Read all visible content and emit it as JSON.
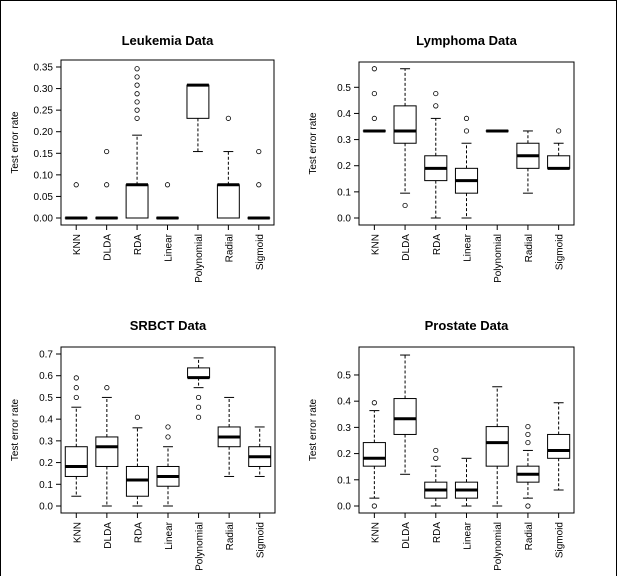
{
  "chart_data": [
    {
      "type": "box",
      "title": "Leukemia Data",
      "ylabel": "Test error rate",
      "ylim": [
        0,
        0.35
      ],
      "yticks": [
        "0.00",
        "0.05",
        "0.10",
        "0.15",
        "0.20",
        "0.25",
        "0.30",
        "0.35"
      ],
      "categories": [
        "KNN",
        "DLDA",
        "RDA",
        "Linear",
        "Polynomial",
        "Radial",
        "Sigmoid"
      ],
      "boxes": [
        {
          "whislo": 0,
          "q1": 0,
          "med": 0,
          "q3": 0,
          "whishi": 0,
          "fliers": [
            0.077
          ]
        },
        {
          "whislo": 0,
          "q1": 0,
          "med": 0,
          "q3": 0,
          "whishi": 0,
          "fliers": [
            0.077,
            0.154
          ]
        },
        {
          "whislo": 0,
          "q1": 0,
          "med": 0.077,
          "q3": 0.077,
          "whishi": 0.192,
          "fliers": [
            0.231,
            0.25,
            0.269,
            0.288,
            0.308,
            0.327,
            0.346
          ]
        },
        {
          "whislo": 0,
          "q1": 0,
          "med": 0,
          "q3": 0,
          "whishi": 0,
          "fliers": [
            0.077
          ]
        },
        {
          "whislo": 0.154,
          "q1": 0.231,
          "med": 0.308,
          "q3": 0.308,
          "whishi": 0.308,
          "fliers": []
        },
        {
          "whislo": 0,
          "q1": 0,
          "med": 0.077,
          "q3": 0.077,
          "whishi": 0.154,
          "fliers": [
            0.231
          ]
        },
        {
          "whislo": 0,
          "q1": 0,
          "med": 0,
          "q3": 0,
          "whishi": 0,
          "fliers": [
            0.077,
            0.154
          ]
        }
      ]
    },
    {
      "type": "box",
      "title": "Lymphoma Data",
      "ylabel": "Test error rate",
      "ylim": [
        0,
        0.57
      ],
      "yticks": [
        "0.0",
        "0.1",
        "0.2",
        "0.3",
        "0.4",
        "0.5"
      ],
      "categories": [
        "KNN",
        "DLDA",
        "RDA",
        "Linear",
        "Polynomial",
        "Radial",
        "Sigmoid"
      ],
      "boxes": [
        {
          "whislo": 0.333,
          "q1": 0.333,
          "med": 0.333,
          "q3": 0.333,
          "whishi": 0.333,
          "fliers": [
            0.381,
            0.476,
            0.571
          ]
        },
        {
          "whislo": 0.095,
          "q1": 0.286,
          "med": 0.333,
          "q3": 0.429,
          "whishi": 0.571,
          "fliers": [
            0.048
          ]
        },
        {
          "whislo": 0,
          "q1": 0.143,
          "med": 0.19,
          "q3": 0.238,
          "whishi": 0.381,
          "fliers": [
            0.429,
            0.476
          ]
        },
        {
          "whislo": 0,
          "q1": 0.095,
          "med": 0.143,
          "q3": 0.19,
          "whishi": 0.286,
          "fliers": [
            0.333,
            0.381
          ]
        },
        {
          "whislo": 0.333,
          "q1": 0.333,
          "med": 0.333,
          "q3": 0.333,
          "whishi": 0.333,
          "fliers": []
        },
        {
          "whislo": 0.095,
          "q1": 0.19,
          "med": 0.238,
          "q3": 0.286,
          "whishi": 0.333,
          "fliers": []
        },
        {
          "whislo": 0.19,
          "q1": 0.19,
          "med": 0.19,
          "q3": 0.238,
          "whishi": 0.286,
          "fliers": [
            0.333
          ]
        }
      ]
    },
    {
      "type": "box",
      "title": "SRBCT Data",
      "ylabel": "Test error rate",
      "ylim": [
        0,
        0.7
      ],
      "yticks": [
        "0.0",
        "0.1",
        "0.2",
        "0.3",
        "0.4",
        "0.5",
        "0.6",
        "0.7"
      ],
      "categories": [
        "KNN",
        "DLDA",
        "RDA",
        "Linear",
        "Polynomial",
        "Radial",
        "Sigmoid"
      ],
      "boxes": [
        {
          "whislo": 0.045,
          "q1": 0.136,
          "med": 0.182,
          "q3": 0.273,
          "whishi": 0.455,
          "fliers": [
            0.5,
            0.545,
            0.59
          ]
        },
        {
          "whislo": 0,
          "q1": 0.182,
          "med": 0.273,
          "q3": 0.318,
          "whishi": 0.5,
          "fliers": [
            0.545
          ]
        },
        {
          "whislo": 0,
          "q1": 0.045,
          "med": 0.12,
          "q3": 0.182,
          "whishi": 0.36,
          "fliers": [
            0.409
          ]
        },
        {
          "whislo": 0,
          "q1": 0.091,
          "med": 0.136,
          "q3": 0.182,
          "whishi": 0.273,
          "fliers": [
            0.318,
            0.364
          ]
        },
        {
          "whislo": 0.545,
          "q1": 0.591,
          "med": 0.591,
          "q3": 0.636,
          "whishi": 0.682,
          "fliers": [
            0.5,
            0.455,
            0.409
          ]
        },
        {
          "whislo": 0.136,
          "q1": 0.273,
          "med": 0.318,
          "q3": 0.364,
          "whishi": 0.5,
          "fliers": []
        },
        {
          "whislo": 0.136,
          "q1": 0.182,
          "med": 0.227,
          "q3": 0.273,
          "whishi": 0.364,
          "fliers": []
        }
      ]
    },
    {
      "type": "box",
      "title": "Prostate Data",
      "ylabel": "Test error rate",
      "ylim": [
        0,
        0.58
      ],
      "yticks": [
        "0.0",
        "0.1",
        "0.2",
        "0.3",
        "0.4",
        "0.5"
      ],
      "categories": [
        "KNN",
        "DLDA",
        "RDA",
        "Linear",
        "Polynomial",
        "Radial",
        "Sigmoid"
      ],
      "boxes": [
        {
          "whislo": 0.03,
          "q1": 0.152,
          "med": 0.182,
          "q3": 0.242,
          "whishi": 0.364,
          "fliers": [
            0.394,
            0.0
          ]
        },
        {
          "whislo": 0.121,
          "q1": 0.273,
          "med": 0.333,
          "q3": 0.41,
          "whishi": 0.576,
          "fliers": []
        },
        {
          "whislo": 0,
          "q1": 0.03,
          "med": 0.061,
          "q3": 0.091,
          "whishi": 0.152,
          "fliers": [
            0.182,
            0.212
          ]
        },
        {
          "whislo": 0,
          "q1": 0.03,
          "med": 0.061,
          "q3": 0.091,
          "whishi": 0.182,
          "fliers": []
        },
        {
          "whislo": 0,
          "q1": 0.152,
          "med": 0.242,
          "q3": 0.303,
          "whishi": 0.455,
          "fliers": []
        },
        {
          "whislo": 0.03,
          "q1": 0.091,
          "med": 0.121,
          "q3": 0.152,
          "whishi": 0.212,
          "fliers": [
            0.242,
            0.273,
            0.303,
            0.0
          ]
        },
        {
          "whislo": 0.061,
          "q1": 0.182,
          "med": 0.212,
          "q3": 0.273,
          "whishi": 0.394,
          "fliers": []
        }
      ]
    }
  ]
}
